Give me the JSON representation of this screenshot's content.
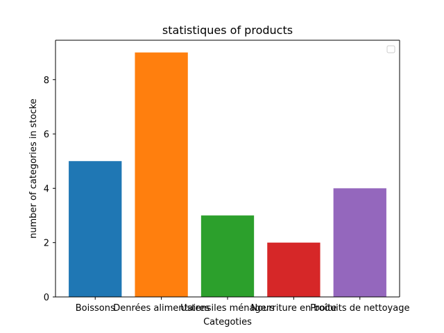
{
  "chart_data": {
    "type": "bar",
    "title": "statistiques of products",
    "xlabel": "Categoties",
    "ylabel": "number of categories in stocke",
    "categories": [
      "Boissons",
      "Denrées alimentaires",
      "Ustensiles ménagers",
      "Nourriture en boîte",
      "Produits de nettoyage"
    ],
    "values": [
      5,
      9,
      3,
      2,
      4
    ],
    "colors": [
      "#1f77b4",
      "#ff7f0e",
      "#2ca02c",
      "#d62728",
      "#9467bd"
    ],
    "ylim": [
      0,
      9.45
    ],
    "yticks": [
      "0",
      "2",
      "4",
      "6",
      "8"
    ],
    "grid": false,
    "legend": {
      "placement": "top-right",
      "entries": []
    }
  }
}
